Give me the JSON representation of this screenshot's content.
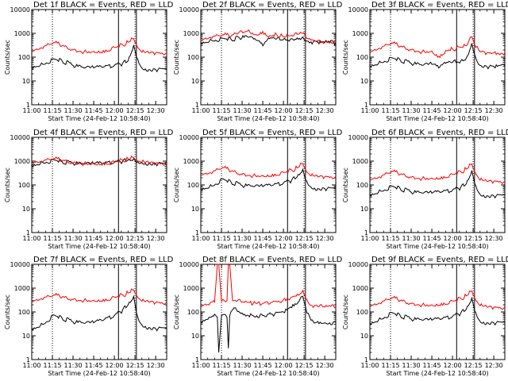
{
  "figure": {
    "colors": {
      "events": "#000000",
      "lld": "#ff0000",
      "axes": "#000000",
      "background": "#ffffff"
    }
  },
  "chart_data": [
    {
      "type": "line",
      "title": "Det 1f BLACK = Events, RED = LLD",
      "xlabel": "Start Time (24-Feb-12 10:58:40)",
      "ylabel": "Counts/sec",
      "y_scale": "log",
      "ylim": [
        1,
        10000
      ],
      "y_ticks": [
        "1",
        "10",
        "100",
        "1000",
        "10000"
      ],
      "x_ticks": [
        "11:00",
        "11:15",
        "11:30",
        "11:45",
        "12:00",
        "12:15",
        "12:30"
      ],
      "x": [
        "11:00",
        "11:08",
        "11:16",
        "11:22",
        "11:30",
        "11:38",
        "11:45",
        "11:52",
        "12:00",
        "12:06",
        "12:10",
        "12:14",
        "12:17",
        "12:20",
        "12:25",
        "12:30",
        "12:38"
      ],
      "series": [
        {
          "name": "BLACK = Events",
          "color": "#000000",
          "values": [
            40,
            50,
            85,
            70,
            45,
            35,
            35,
            38,
            45,
            55,
            70,
            320,
            80,
            35,
            30,
            30,
            32
          ]
        },
        {
          "name": "RED = LLD",
          "color": "#ff0000",
          "values": [
            160,
            230,
            420,
            300,
            200,
            170,
            175,
            190,
            260,
            330,
            420,
            600,
            250,
            160,
            150,
            150,
            155
          ]
        }
      ],
      "dotted_lines": [
        "11:15",
        "12:15"
      ],
      "solid_lines": [
        "12:03",
        "12:16"
      ]
    },
    {
      "type": "line",
      "title": "Det 2f BLACK = Events, RED = LLD",
      "xlabel": "Start Time (24-Feb-12 10:58:40)",
      "ylabel": "Counts/sec",
      "y_scale": "log",
      "ylim": [
        1,
        10000
      ],
      "y_ticks": [
        "1",
        "10",
        "100",
        "1000",
        "10000"
      ],
      "x_ticks": [
        "11:00",
        "11:15",
        "11:30",
        "11:45",
        "12:00",
        "12:15",
        "12:30"
      ],
      "x": [
        "11:00",
        "11:08",
        "11:16",
        "11:22",
        "11:28",
        "11:34",
        "11:40",
        "11:45",
        "11:50",
        "11:55",
        "12:00",
        "12:06",
        "12:10",
        "12:14",
        "12:17",
        "12:20",
        "12:25",
        "12:30",
        "12:38"
      ],
      "series": [
        {
          "name": "BLACK = Events",
          "color": "#000000",
          "values": [
            420,
            500,
            620,
            560,
            640,
            700,
            520,
            300,
            600,
            580,
            560,
            600,
            640,
            700,
            480,
            440,
            420,
            400,
            410
          ]
        },
        {
          "name": "RED = LLD",
          "color": "#ff0000",
          "values": [
            480,
            620,
            880,
            760,
            1150,
            1250,
            900,
            1200,
            800,
            900,
            700,
            800,
            900,
            1000,
            620,
            520,
            480,
            450,
            460
          ]
        }
      ],
      "dotted_lines": [
        "11:15",
        "12:15"
      ],
      "solid_lines": [
        "12:03",
        "12:16"
      ]
    },
    {
      "type": "line",
      "title": "Det 3f BLACK = Events, RED = LLD",
      "xlabel": "Start Time (24-Feb-12 10:58:40)",
      "ylabel": "Counts/sec",
      "y_scale": "log",
      "ylim": [
        1,
        10000
      ],
      "y_ticks": [
        "1",
        "10",
        "100",
        "1000",
        "10000"
      ],
      "x_ticks": [
        "11:00",
        "11:15",
        "11:30",
        "11:45",
        "12:00",
        "12:15",
        "12:30"
      ],
      "x": [
        "11:00",
        "11:08",
        "11:16",
        "11:22",
        "11:30",
        "11:38",
        "11:45",
        "11:50",
        "11:55",
        "12:00",
        "12:06",
        "12:10",
        "12:14",
        "12:17",
        "12:20",
        "12:25",
        "12:30",
        "12:38"
      ],
      "series": [
        {
          "name": "BLACK = Events",
          "color": "#000000",
          "values": [
            45,
            60,
            95,
            75,
            55,
            45,
            50,
            35,
            55,
            60,
            70,
            90,
            380,
            90,
            45,
            40,
            40,
            42
          ]
        },
        {
          "name": "RED = LLD",
          "color": "#ff0000",
          "values": [
            150,
            220,
            400,
            280,
            200,
            170,
            180,
            110,
            190,
            220,
            260,
            300,
            700,
            260,
            170,
            150,
            150,
            155
          ]
        }
      ],
      "dotted_lines": [
        "11:15",
        "12:15"
      ],
      "solid_lines": [
        "12:03",
        "12:16"
      ]
    },
    {
      "type": "line",
      "title": "Det 4f BLACK = Events, RED = LLD",
      "xlabel": "Start Time (24-Feb-12 10:58:40)",
      "ylabel": "Counts/sec",
      "y_scale": "log",
      "ylim": [
        1,
        10000
      ],
      "y_ticks": [
        "1",
        "10",
        "100",
        "1000",
        "10000"
      ],
      "x_ticks": [
        "11:00",
        "11:15",
        "11:30",
        "11:45",
        "12:00",
        "12:15",
        "12:30"
      ],
      "x": [
        "11:00",
        "11:08",
        "11:16",
        "11:22",
        "11:30",
        "11:38",
        "11:45",
        "11:52",
        "12:00",
        "12:06",
        "12:10",
        "12:14",
        "12:17",
        "12:20",
        "12:25",
        "12:30",
        "12:38"
      ],
      "series": [
        {
          "name": "BLACK = Events",
          "color": "#000000",
          "values": [
            700,
            850,
            1150,
            950,
            800,
            750,
            760,
            800,
            900,
            1000,
            1100,
            1250,
            950,
            850,
            800,
            780,
            780
          ]
        },
        {
          "name": "RED = LLD",
          "color": "#ff0000",
          "values": [
            750,
            900,
            1300,
            1050,
            850,
            800,
            810,
            850,
            950,
            1100,
            1200,
            1400,
            1000,
            900,
            850,
            820,
            820
          ]
        }
      ],
      "dotted_lines": [
        "11:15",
        "12:15"
      ],
      "solid_lines": [
        "12:03",
        "12:16"
      ]
    },
    {
      "type": "line",
      "title": "Det 5f BLACK = Events, RED = LLD",
      "xlabel": "Start Time (24-Feb-12 10:58:40)",
      "ylabel": "Counts/sec",
      "y_scale": "log",
      "ylim": [
        1,
        10000
      ],
      "y_ticks": [
        "1",
        "10",
        "100",
        "1000",
        "10000"
      ],
      "x_ticks": [
        "11:00",
        "11:15",
        "11:30",
        "11:45",
        "12:00",
        "12:15",
        "12:30"
      ],
      "x": [
        "11:00",
        "11:08",
        "11:16",
        "11:22",
        "11:30",
        "11:38",
        "11:45",
        "11:52",
        "12:00",
        "12:06",
        "12:10",
        "12:14",
        "12:17",
        "12:20",
        "12:25",
        "12:30",
        "12:38"
      ],
      "series": [
        {
          "name": "BLACK = Events",
          "color": "#000000",
          "values": [
            70,
            90,
            180,
            130,
            95,
            85,
            85,
            95,
            120,
            160,
            220,
            450,
            140,
            80,
            70,
            70,
            72
          ]
        },
        {
          "name": "RED = LLD",
          "color": "#ff0000",
          "values": [
            240,
            300,
            550,
            380,
            280,
            250,
            250,
            280,
            340,
            420,
            520,
            800,
            340,
            240,
            220,
            220,
            225
          ]
        }
      ],
      "dotted_lines": [
        "11:15",
        "12:15"
      ],
      "solid_lines": [
        "12:03",
        "12:16"
      ]
    },
    {
      "type": "line",
      "title": "Det 6f BLACK = Events, RED = LLD",
      "xlabel": "Start Time (24-Feb-12 10:58:40)",
      "ylabel": "Counts/sec",
      "y_scale": "log",
      "ylim": [
        1,
        10000
      ],
      "y_ticks": [
        "1",
        "10",
        "100",
        "1000",
        "10000"
      ],
      "x_ticks": [
        "11:00",
        "11:15",
        "11:30",
        "11:45",
        "12:00",
        "12:15",
        "12:30"
      ],
      "x": [
        "11:00",
        "11:08",
        "11:16",
        "11:22",
        "11:30",
        "11:38",
        "11:45",
        "11:52",
        "12:00",
        "12:06",
        "12:10",
        "12:14",
        "12:17",
        "12:20",
        "12:25",
        "12:30",
        "12:38"
      ],
      "series": [
        {
          "name": "BLACK = Events",
          "color": "#000000",
          "values": [
            40,
            55,
            90,
            70,
            50,
            45,
            45,
            50,
            60,
            80,
            110,
            400,
            90,
            40,
            35,
            35,
            37
          ]
        },
        {
          "name": "RED = LLD",
          "color": "#ff0000",
          "values": [
            150,
            200,
            380,
            280,
            210,
            190,
            195,
            220,
            280,
            360,
            460,
            750,
            280,
            160,
            140,
            140,
            145
          ]
        }
      ],
      "dotted_lines": [
        "11:15",
        "12:15"
      ],
      "solid_lines": [
        "12:03",
        "12:16"
      ]
    },
    {
      "type": "line",
      "title": "Det 7f BLACK = Events, RED = LLD",
      "xlabel": "Start Time (24-Feb-12 10:58:40)",
      "ylabel": "Counts/sec",
      "y_scale": "log",
      "ylim": [
        1,
        10000
      ],
      "y_ticks": [
        "1",
        "10",
        "100",
        "1000",
        "10000"
      ],
      "x_ticks": [
        "11:00",
        "11:15",
        "11:30",
        "11:45",
        "12:00",
        "12:15",
        "12:30"
      ],
      "x": [
        "11:00",
        "11:08",
        "11:16",
        "11:22",
        "11:30",
        "11:38",
        "11:45",
        "11:52",
        "12:00",
        "12:06",
        "12:10",
        "12:14",
        "12:17",
        "12:20",
        "12:25",
        "12:30",
        "12:38"
      ],
      "series": [
        {
          "name": "BLACK = Events",
          "color": "#000000",
          "values": [
            20,
            30,
            75,
            55,
            38,
            33,
            35,
            45,
            70,
            120,
            200,
            450,
            60,
            28,
            22,
            20,
            21
          ]
        },
        {
          "name": "RED = LLD",
          "color": "#ff0000",
          "values": [
            250,
            330,
            520,
            420,
            330,
            310,
            310,
            340,
            420,
            520,
            620,
            850,
            400,
            280,
            260,
            250,
            255
          ]
        }
      ],
      "dotted_lines": [
        "11:15",
        "12:15"
      ],
      "solid_lines": [
        "12:03",
        "12:16"
      ]
    },
    {
      "type": "line",
      "title": "Det 8f BLACK = Events, RED = LLD",
      "xlabel": "Start Time (24-Feb-12 10:58:40)",
      "ylabel": "Counts/sec",
      "y_scale": "log",
      "ylim": [
        1,
        10000
      ],
      "y_ticks": [
        "1",
        "10",
        "100",
        "1000",
        "10000"
      ],
      "x_ticks": [
        "11:00",
        "11:15",
        "11:30",
        "11:45",
        "12:00",
        "12:15",
        "12:30"
      ],
      "x": [
        "11:00",
        "11:06",
        "11:10",
        "11:12",
        "11:13",
        "11:15",
        "11:17",
        "11:19",
        "11:20",
        "11:21",
        "11:23",
        "11:25",
        "11:30",
        "11:38",
        "11:45",
        "11:52",
        "12:00",
        "12:06",
        "12:10",
        "12:14",
        "12:17",
        "12:20",
        "12:25",
        "12:30",
        "12:38"
      ],
      "series": [
        {
          "name": "BLACK = Events",
          "color": "#000000",
          "values": [
            40,
            60,
            80,
            60,
            2,
            70,
            80,
            60,
            3,
            70,
            120,
            150,
            90,
            70,
            70,
            80,
            100,
            150,
            220,
            450,
            90,
            45,
            40,
            35,
            36
          ]
        },
        {
          "name": "RED = LLD",
          "color": "#ff0000",
          "values": [
            160,
            200,
            260,
            10000,
            10000,
            280,
            300,
            300,
            10000,
            10000,
            300,
            310,
            260,
            220,
            230,
            260,
            320,
            420,
            560,
            800,
            320,
            190,
            170,
            160,
            165
          ]
        }
      ],
      "dotted_lines": [
        "11:15",
        "12:15"
      ],
      "solid_lines": [
        "12:03",
        "12:16"
      ]
    },
    {
      "type": "line",
      "title": "Det 9f BLACK = Events, RED = LLD",
      "xlabel": "Start Time (24-Feb-12 10:58:40)",
      "ylabel": "Counts/sec",
      "y_scale": "log",
      "ylim": [
        1,
        10000
      ],
      "y_ticks": [
        "1",
        "10",
        "100",
        "1000",
        "10000"
      ],
      "x_ticks": [
        "11:00",
        "11:15",
        "11:30",
        "11:45",
        "12:00",
        "12:15",
        "12:30"
      ],
      "x": [
        "11:00",
        "11:08",
        "11:16",
        "11:22",
        "11:30",
        "11:38",
        "11:45",
        "11:52",
        "12:00",
        "12:06",
        "12:10",
        "12:14",
        "12:17",
        "12:20",
        "12:25",
        "12:30",
        "12:38"
      ],
      "series": [
        {
          "name": "BLACK = Events",
          "color": "#000000",
          "values": [
            35,
            50,
            95,
            70,
            50,
            45,
            45,
            50,
            65,
            90,
            130,
            380,
            90,
            40,
            35,
            35,
            36
          ]
        },
        {
          "name": "RED = LLD",
          "color": "#ff0000",
          "values": [
            160,
            220,
            400,
            300,
            220,
            200,
            200,
            230,
            290,
            370,
            470,
            750,
            300,
            180,
            160,
            155,
            160
          ]
        }
      ],
      "dotted_lines": [
        "11:15",
        "12:15"
      ],
      "solid_lines": [
        "12:03",
        "12:16"
      ]
    }
  ]
}
